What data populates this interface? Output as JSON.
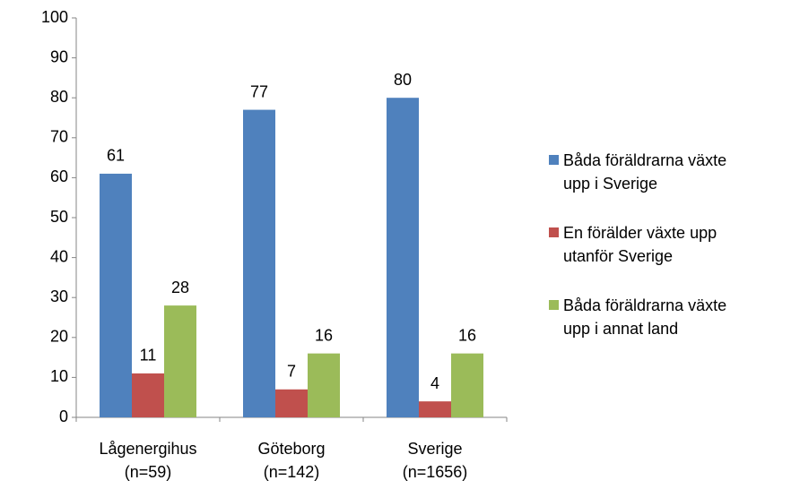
{
  "chart_data": {
    "type": "bar",
    "categories": [
      "Lågenergihus\n(n=59)",
      "Göteborg\n(n=142)",
      "Sverige\n(n=1656)"
    ],
    "series": [
      {
        "name": "Båda föräldrarna växte\nupp i Sverige",
        "color": "#4f81bd",
        "values": [
          61,
          77,
          80
        ]
      },
      {
        "name": "En förälder växte upp\nutanför Sverige",
        "color": "#c0504d",
        "values": [
          11,
          7,
          4
        ]
      },
      {
        "name": "Båda föräldrarna växte\nupp i annat land",
        "color": "#9bbb59",
        "values": [
          28,
          16,
          16
        ]
      }
    ],
    "ylim": [
      0,
      100
    ],
    "yticks": [
      0,
      10,
      20,
      30,
      40,
      50,
      60,
      70,
      80,
      90,
      100
    ],
    "grid": false,
    "legend": "right"
  }
}
